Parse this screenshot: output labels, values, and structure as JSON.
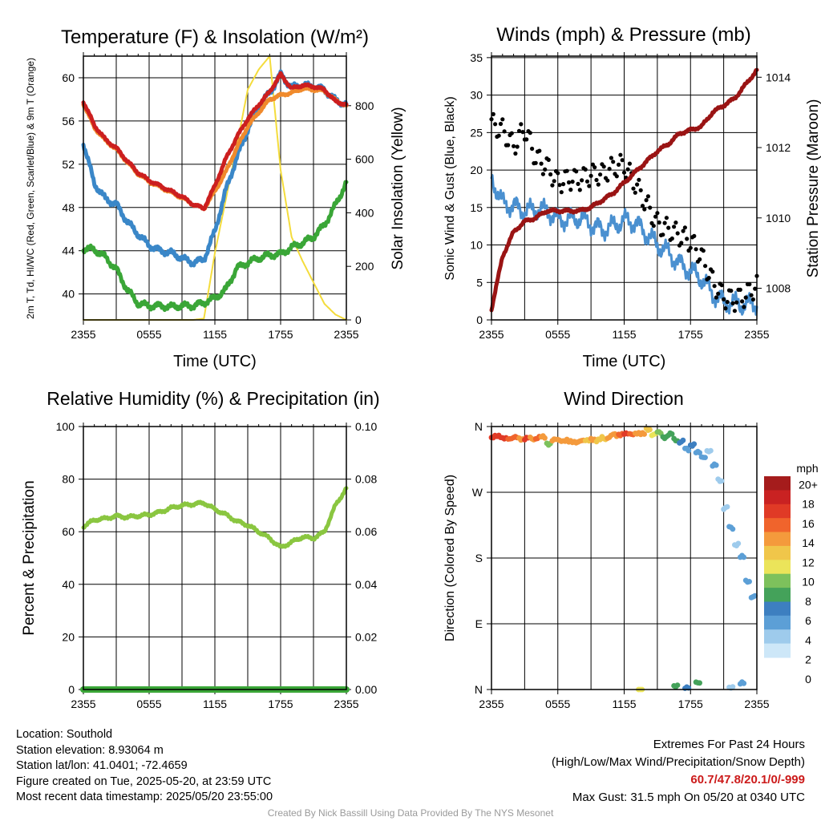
{
  "chart_data": [
    {
      "type": "line",
      "title": "Temperature (F) & Insolation (W/m²)",
      "xlabel": "Time (UTC)",
      "ylabel_left": "2m T, Td, HI/WC (Red, Green, Scarlet/Blue) & 9m T (Orange)",
      "ylabel_right": "Solar Insolation (Yellow)",
      "x_tick_labels": [
        "2355",
        "0555",
        "1155",
        "1755",
        "2355"
      ],
      "y_ticks_left": [
        40,
        44,
        48,
        52,
        56,
        60
      ],
      "y_ticks_right": [
        0,
        200,
        400,
        600,
        800
      ],
      "ylim_left": [
        37.6,
        62.0
      ],
      "ylim_right": [
        0,
        985
      ],
      "x_hours": [
        0,
        1,
        2,
        3,
        4,
        5,
        6,
        7,
        8,
        9,
        10,
        11,
        12,
        13,
        14,
        15,
        16,
        17,
        18,
        19,
        20,
        21,
        22,
        23,
        24
      ],
      "series": [
        {
          "name": "2m T",
          "color": "#cc1f1f",
          "axis": "left",
          "values": [
            57.8,
            55.6,
            54.3,
            53.5,
            52.3,
            51.2,
            50.5,
            50.0,
            49.5,
            49.0,
            48.3,
            47.9,
            50.0,
            52.5,
            54.5,
            56.2,
            57.5,
            58.7,
            60.3,
            59.0,
            59.3,
            59.2,
            58.9,
            57.8,
            57.5
          ]
        },
        {
          "name": "9m T",
          "color": "#f08a2c",
          "axis": "left",
          "values": [
            57.6,
            55.4,
            54.2,
            53.4,
            52.2,
            51.1,
            50.4,
            49.9,
            49.4,
            48.9,
            48.3,
            47.9,
            49.5,
            51.3,
            53.5,
            55.5,
            56.8,
            58.0,
            58.4,
            58.6,
            59.0,
            58.9,
            58.8,
            57.9,
            57.4
          ]
        },
        {
          "name": "HI/WC",
          "color": "#3a87c8",
          "axis": "left",
          "values": [
            54.0,
            50.2,
            48.8,
            48.3,
            46.7,
            45.5,
            44.5,
            44.0,
            43.8,
            43.3,
            42.9,
            43.2,
            45.8,
            49.6,
            52.6,
            55.2,
            57.4,
            58.6,
            60.3,
            59.1,
            59.3,
            59.2,
            58.9,
            57.9,
            57.5
          ]
        },
        {
          "name": "Td",
          "color": "#3aa637",
          "axis": "left",
          "values": [
            44.2,
            44.1,
            43.4,
            42.3,
            40.4,
            39.1,
            38.9,
            38.9,
            38.8,
            38.9,
            38.9,
            39.2,
            39.6,
            40.4,
            42.4,
            42.9,
            43.3,
            43.6,
            43.7,
            44.3,
            44.7,
            45.3,
            46.4,
            48.2,
            50.3
          ]
        },
        {
          "name": "Solar Insolation",
          "color": "#f4dc3c",
          "axis": "right",
          "values": [
            0,
            0,
            0,
            0,
            0,
            0,
            0,
            0,
            0,
            0,
            0,
            5,
            250,
            450,
            650,
            860,
            935,
            985,
            560,
            310,
            220,
            140,
            60,
            20,
            0
          ]
        }
      ]
    },
    {
      "type": "line",
      "title": "Winds (mph) & Pressure (mb)",
      "xlabel": "Time (UTC)",
      "ylabel_left": "Sonic Wind & Gust (Blue, Black)",
      "ylabel_right": "Station Pressure (Maroon)",
      "x_tick_labels": [
        "2355",
        "0555",
        "1155",
        "1755",
        "2355"
      ],
      "y_ticks_left": [
        0,
        5,
        10,
        15,
        20,
        25,
        30,
        35
      ],
      "y_ticks_right": [
        1008,
        1010,
        1012,
        1014
      ],
      "ylim_left": [
        0,
        35.2
      ],
      "ylim_right": [
        1007.1,
        1014.6
      ],
      "x_hours": [
        0,
        1,
        2,
        3,
        4,
        5,
        6,
        7,
        8,
        9,
        10,
        11,
        12,
        13,
        14,
        15,
        16,
        17,
        18,
        19,
        20,
        21,
        22,
        23,
        24
      ],
      "series": [
        {
          "name": "Sonic Wind",
          "color": "#4a90d0",
          "axis": "left",
          "values": [
            19,
            15.5,
            15.2,
            14.5,
            14.7,
            14.6,
            13.5,
            13.3,
            13.6,
            12.8,
            12.0,
            12.5,
            13.3,
            13.0,
            11.5,
            10.0,
            9.0,
            7.5,
            6.5,
            5.5,
            3.5,
            2.4,
            2.2,
            2.0,
            2.3
          ]
        },
        {
          "name": "Gust",
          "color": "#000000",
          "axis": "left",
          "values": [
            27,
            25.5,
            22.5,
            24.5,
            21.0,
            20.6,
            19.2,
            19.8,
            19.2,
            19.0,
            18.5,
            19.5,
            20.5,
            18.8,
            16.5,
            13.5,
            12.0,
            10.5,
            9.5,
            8.0,
            5.5,
            4.0,
            3.5,
            3.5,
            4.0
          ]
        },
        {
          "name": "Station Pressure",
          "color": "#9a1414",
          "axis": "right",
          "values": [
            1007.4,
            1008.9,
            1009.6,
            1009.9,
            1010.0,
            1010.2,
            1010.2,
            1010.2,
            1010.2,
            1010.3,
            1010.5,
            1010.7,
            1011.0,
            1011.3,
            1011.6,
            1011.9,
            1012.1,
            1012.4,
            1012.5,
            1012.6,
            1013.0,
            1013.2,
            1013.4,
            1013.8,
            1014.2
          ]
        }
      ]
    },
    {
      "type": "line",
      "title": "Relative Humidity (%) & Precipitation (in)",
      "xlabel": "",
      "ylabel_left": "Percent & Precipitation",
      "x_tick_labels": [
        "2355",
        "0555",
        "1155",
        "1755",
        "2355"
      ],
      "y_ticks_left": [
        0,
        20,
        40,
        60,
        80,
        100
      ],
      "y_ticks_right": [
        "0.00",
        "0.02",
        "0.04",
        "0.06",
        "0.08",
        "0.10"
      ],
      "ylim_left": [
        0,
        100
      ],
      "ylim_right": [
        0,
        0.1
      ],
      "x_hours": [
        0,
        1,
        2,
        3,
        4,
        5,
        6,
        7,
        8,
        9,
        10,
        11,
        12,
        13,
        14,
        15,
        16,
        17,
        18,
        19,
        20,
        21,
        22,
        23,
        24
      ],
      "series": [
        {
          "name": "Relative Humidity",
          "color": "#8ac640",
          "axis": "left",
          "values": [
            62,
            64.5,
            65,
            66,
            65.5,
            66,
            66.5,
            67.5,
            69,
            70,
            70.5,
            71,
            68.5,
            66.5,
            64,
            62.5,
            60,
            57.5,
            54,
            56,
            58,
            57.5,
            60,
            70,
            76.5
          ]
        },
        {
          "name": "Precipitation",
          "color": "#3aa637",
          "axis": "right",
          "values": [
            0,
            0,
            0,
            0,
            0,
            0,
            0,
            0,
            0,
            0,
            0,
            0,
            0,
            0,
            0,
            0,
            0,
            0,
            0,
            0,
            0,
            0,
            0,
            0,
            0
          ]
        }
      ]
    },
    {
      "type": "scatter",
      "title": "Wind Direction",
      "ylabel_left": "Direction (Colored By Speed)",
      "x_tick_labels": [
        "2355",
        "0555",
        "1155",
        "1755",
        "2355"
      ],
      "y_tick_labels": [
        "N",
        "E",
        "S",
        "W",
        "N"
      ],
      "y_ticks_degrees": [
        0,
        90,
        180,
        270,
        360
      ],
      "ylim": [
        0,
        360
      ],
      "colorbar": {
        "title": "mph",
        "labels": [
          "20+",
          "18",
          "16",
          "14",
          "12",
          "10",
          "8",
          "6",
          "4",
          "2",
          "0"
        ],
        "colors": [
          "#a51c1c",
          "#c92222",
          "#e03a26",
          "#f0642c",
          "#f49a3c",
          "#f0c64a",
          "#ebe45a",
          "#7dc15c",
          "#44a25a",
          "#3d7fc0",
          "#5c9fd6",
          "#9ecbec",
          "#cde7f8"
        ]
      },
      "points": [
        {
          "hour": 0.0,
          "deg": 345,
          "mph": 16
        },
        {
          "hour": 0.5,
          "deg": 347,
          "mph": 17
        },
        {
          "hour": 1.0,
          "deg": 344,
          "mph": 16
        },
        {
          "hour": 1.5,
          "deg": 343,
          "mph": 15
        },
        {
          "hour": 2.0,
          "deg": 346,
          "mph": 15
        },
        {
          "hour": 2.5,
          "deg": 342,
          "mph": 14
        },
        {
          "hour": 3.0,
          "deg": 345,
          "mph": 16
        },
        {
          "hour": 3.5,
          "deg": 342,
          "mph": 14
        },
        {
          "hour": 4.0,
          "deg": 346,
          "mph": 15
        },
        {
          "hour": 4.5,
          "deg": 344,
          "mph": 14
        },
        {
          "hour": 5.0,
          "deg": 338,
          "mph": 9
        },
        {
          "hour": 5.5,
          "deg": 340,
          "mph": 14
        },
        {
          "hour": 6.0,
          "deg": 343,
          "mph": 14
        },
        {
          "hour": 6.5,
          "deg": 339,
          "mph": 13
        },
        {
          "hour": 7.0,
          "deg": 341,
          "mph": 13
        },
        {
          "hour": 7.5,
          "deg": 337,
          "mph": 13
        },
        {
          "hour": 8.0,
          "deg": 342,
          "mph": 13
        },
        {
          "hour": 8.5,
          "deg": 340,
          "mph": 12
        },
        {
          "hour": 9.0,
          "deg": 343,
          "mph": 13
        },
        {
          "hour": 9.5,
          "deg": 341,
          "mph": 12
        },
        {
          "hour": 10.0,
          "deg": 344,
          "mph": 12
        },
        {
          "hour": 10.5,
          "deg": 346,
          "mph": 13
        },
        {
          "hour": 11.0,
          "deg": 348,
          "mph": 14
        },
        {
          "hour": 11.5,
          "deg": 350,
          "mph": 15
        },
        {
          "hour": 12.0,
          "deg": 349,
          "mph": 16
        },
        {
          "hour": 12.5,
          "deg": 351,
          "mph": 15
        },
        {
          "hour": 13.0,
          "deg": 349,
          "mph": 14
        },
        {
          "hour": 13.5,
          "deg": 352,
          "mph": 13
        },
        {
          "hour": 14.0,
          "deg": 354,
          "mph": 11
        },
        {
          "hour": 14.5,
          "deg": 351,
          "mph": 10
        },
        {
          "hour": 15.0,
          "deg": 350,
          "mph": 9
        },
        {
          "hour": 15.5,
          "deg": 347,
          "mph": 7
        },
        {
          "hour": 16.0,
          "deg": 348,
          "mph": 7
        },
        {
          "hour": 16.5,
          "deg": 343,
          "mph": 6
        },
        {
          "hour": 17.0,
          "deg": 338,
          "mph": 5
        },
        {
          "hour": 17.5,
          "deg": 330,
          "mph": 4
        },
        {
          "hour": 18.0,
          "deg": 334,
          "mph": 5
        },
        {
          "hour": 18.5,
          "deg": 325,
          "mph": 4
        },
        {
          "hour": 19.0,
          "deg": 318,
          "mph": 3
        },
        {
          "hour": 19.5,
          "deg": 326,
          "mph": 2
        },
        {
          "hour": 20.0,
          "deg": 308,
          "mph": 3
        },
        {
          "hour": 20.5,
          "deg": 285,
          "mph": 1
        },
        {
          "hour": 21.0,
          "deg": 250,
          "mph": 1
        },
        {
          "hour": 21.5,
          "deg": 220,
          "mph": 3
        },
        {
          "hour": 22.0,
          "deg": 200,
          "mph": 2
        },
        {
          "hour": 22.5,
          "deg": 180,
          "mph": 3
        },
        {
          "hour": 23.0,
          "deg": 150,
          "mph": 4
        },
        {
          "hour": 23.5,
          "deg": 125,
          "mph": 3
        },
        {
          "hour": 13.3,
          "deg": 1,
          "mph": 10
        },
        {
          "hour": 16.5,
          "deg": 3,
          "mph": 6
        },
        {
          "hour": 17.5,
          "deg": 4,
          "mph": 5
        },
        {
          "hour": 18.5,
          "deg": 8,
          "mph": 6
        },
        {
          "hour": 21.5,
          "deg": 4,
          "mph": 1
        },
        {
          "hour": 22.5,
          "deg": 8,
          "mph": 3
        }
      ]
    }
  ],
  "footer": {
    "location": "Location: Southold",
    "elevation": "Station elevation: 8.93064 m",
    "latlon": "Station lat/lon: 41.0401; -72.4659",
    "created": "Figure created on Tue, 2025-05-20, at 23:59 UTC",
    "recent": "Most recent data timestamp: 2025/05/20 23:55:00",
    "extremes_title": "Extremes For Past 24 Hours",
    "extremes_subtitle": "(High/Low/Max Wind/Precipitation/Snow Depth)",
    "extremes_values": "60.7/47.8/20.1/0/-999",
    "max_gust": "Max Gust: 31.5 mph On 05/20 at 0340 UTC",
    "credit": "Created By Nick Bassill Using Data Provided By The NYS Mesonet"
  }
}
